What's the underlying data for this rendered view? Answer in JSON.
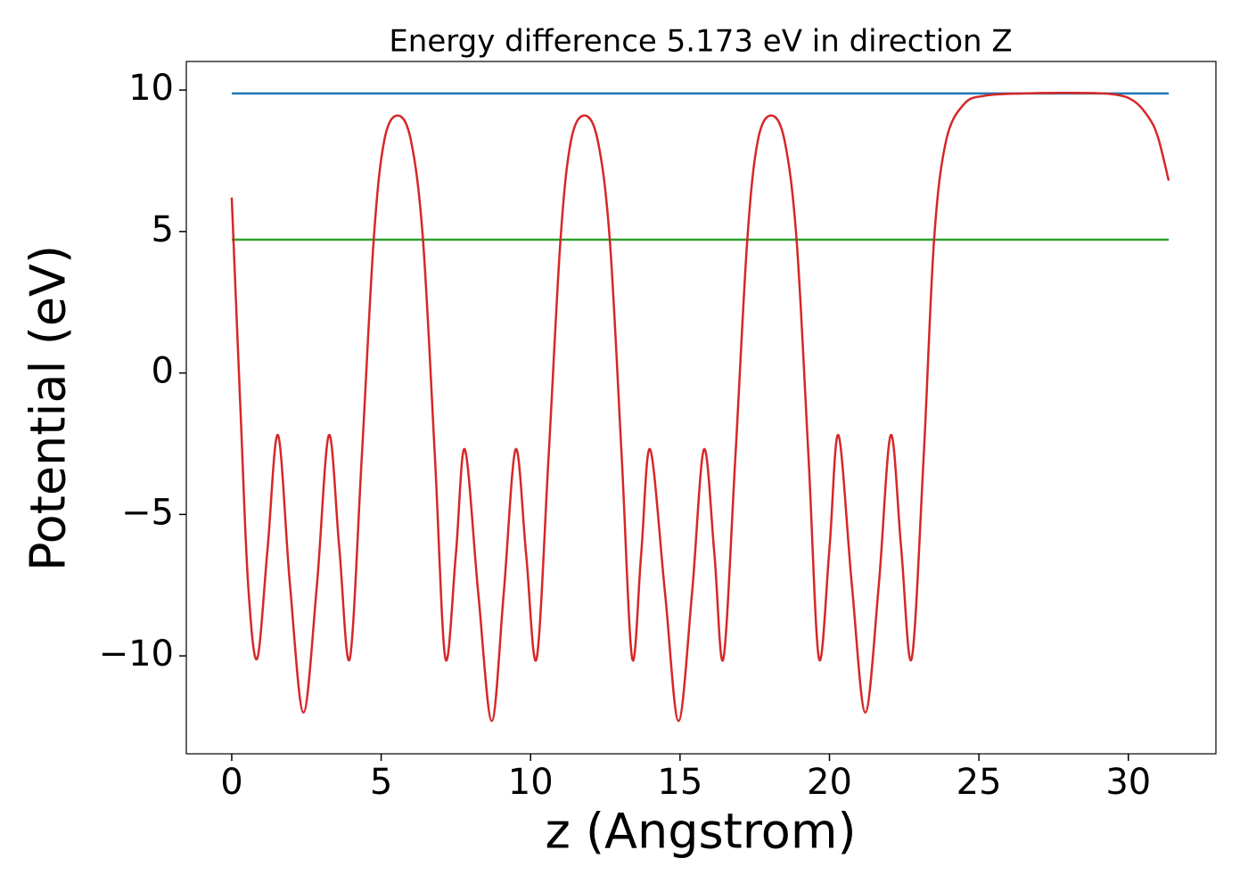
{
  "chart_data": {
    "type": "line",
    "title": "Energy difference 5.173 eV in direction Z",
    "xlabel": "z (Angstrom)",
    "ylabel": "Potential (eV)",
    "xlim": [
      -1.52,
      32.93
    ],
    "ylim": [
      -13.46,
      11.01
    ],
    "xticks": [
      0,
      5,
      10,
      15,
      20,
      25,
      30
    ],
    "yticks": [
      {
        "value": -10,
        "label": "−10"
      },
      {
        "value": -5,
        "label": "−5"
      },
      0,
      5,
      10
    ],
    "grid": false,
    "series": [
      {
        "color": "#d62728",
        "x": [
          0,
          0.3,
          0.55,
          0.85,
          1.2,
          1.55,
          1.95,
          2.4,
          2.85,
          3.25,
          3.6,
          3.95,
          4.35,
          4.75,
          5.1,
          5.55,
          6.0,
          6.4,
          6.8,
          7.15,
          7.5,
          7.8,
          8.25,
          8.7,
          9.1,
          9.5,
          9.85,
          10.2,
          10.6,
          11.0,
          11.35,
          11.8,
          12.25,
          12.65,
          13.05,
          13.4,
          13.7,
          14.0,
          14.5,
          14.95,
          15.4,
          15.8,
          16.15,
          16.45,
          16.85,
          17.25,
          17.6,
          18.05,
          18.5,
          18.9,
          19.3,
          19.65,
          20.0,
          20.3,
          20.75,
          21.2,
          21.65,
          22.05,
          22.4,
          22.75,
          23.15,
          23.5,
          23.9,
          24.5,
          25.2,
          26.5,
          28,
          29.5,
          30.2,
          30.7,
          31.0,
          31.35
        ],
        "values": [
          6.2,
          -1.5,
          -7.5,
          -10.1,
          -6.2,
          -2.2,
          -7.5,
          -12.0,
          -7.5,
          -2.2,
          -6.2,
          -10.1,
          -3,
          4.7,
          8.2,
          9.1,
          8.2,
          4.7,
          -3,
          -10.1,
          -6.4,
          -2.7,
          -7.8,
          -12.3,
          -7.8,
          -2.7,
          -6.4,
          -10.1,
          -3,
          4.7,
          8.2,
          9.1,
          8.2,
          4.7,
          -3,
          -10.1,
          -6.4,
          -2.7,
          -7.8,
          -12.3,
          -7.8,
          -2.7,
          -6.4,
          -10.1,
          -3,
          4.7,
          8.2,
          9.1,
          8.2,
          4.7,
          -3,
          -10.1,
          -6.2,
          -2.2,
          -7.5,
          -12.0,
          -7.5,
          -2.2,
          -6.2,
          -10.1,
          -3,
          4.7,
          8.2,
          9.5,
          9.8,
          9.88,
          9.9,
          9.85,
          9.6,
          9.0,
          8.3,
          6.8
        ]
      },
      {
        "color": "#1f77b4",
        "x": [
          0,
          31.35
        ],
        "values": [
          9.88,
          9.88
        ]
      },
      {
        "color": "#2ca02c",
        "x": [
          0,
          31.35
        ],
        "values": [
          4.71,
          4.71
        ]
      }
    ]
  }
}
